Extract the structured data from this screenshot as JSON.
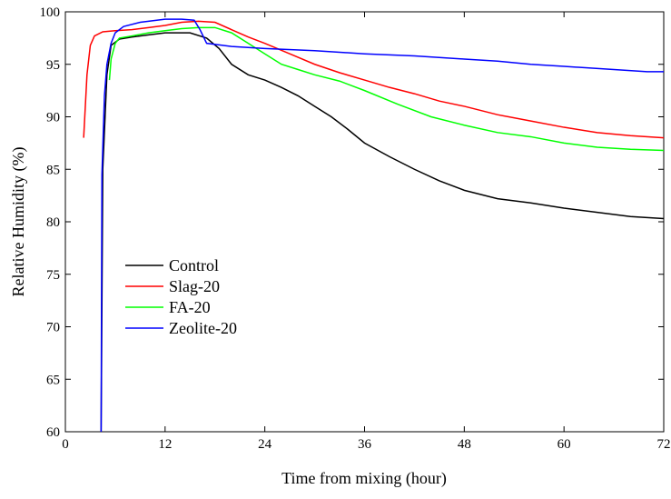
{
  "chart_data": {
    "type": "line",
    "x_label": "Time from mixing (hour)",
    "y_label": "Relative Humidity (%)",
    "xlim": [
      0,
      72
    ],
    "xticks": [
      0,
      12,
      24,
      36,
      48,
      60,
      72
    ],
    "ylim": [
      60,
      100
    ],
    "yticks": [
      60,
      65,
      70,
      75,
      80,
      85,
      90,
      95,
      100
    ],
    "legend": "lower-left",
    "series": [
      {
        "name": "Control",
        "color": "#000000",
        "x": [
          4.3,
          4.5,
          5,
          5.5,
          6.5,
          8,
          10,
          12,
          15,
          17,
          18.5,
          20,
          22,
          24,
          26,
          28,
          30,
          32,
          34,
          36,
          39,
          42,
          45,
          48,
          52,
          56,
          60,
          64,
          68,
          72
        ],
        "values": [
          60,
          85,
          94,
          96.8,
          97.4,
          97.6,
          97.8,
          98,
          98,
          97.5,
          96.5,
          95,
          94,
          93.5,
          92.8,
          92,
          91,
          90,
          88.8,
          87.5,
          86.2,
          85,
          83.9,
          83,
          82.2,
          81.8,
          81.3,
          80.9,
          80.5,
          80.3
        ]
      },
      {
        "name": "Slag-20",
        "color": "#ff0000",
        "x": [
          2.2,
          2.6,
          3,
          3.5,
          4.5,
          6,
          8,
          10,
          12,
          14,
          16,
          18,
          20,
          22,
          24,
          27,
          30,
          33,
          36,
          39,
          42,
          45,
          48,
          52,
          56,
          60,
          64,
          68,
          72
        ],
        "values": [
          88,
          94,
          96.8,
          97.7,
          98.1,
          98.2,
          98.3,
          98.5,
          98.7,
          99,
          99.1,
          99,
          98.3,
          97.6,
          97,
          96,
          95,
          94.2,
          93.5,
          92.8,
          92.2,
          91.5,
          91,
          90.2,
          89.6,
          89,
          88.5,
          88.2,
          88
        ]
      },
      {
        "name": "FA-20",
        "color": "#00ff00",
        "x": [
          5.3,
          5.5,
          6,
          6.5,
          8,
          10,
          12,
          14,
          16,
          18,
          20,
          22,
          24,
          26,
          28,
          30,
          33,
          36,
          40,
          44,
          48,
          52,
          56,
          60,
          64,
          68,
          72
        ],
        "values": [
          93.5,
          95.5,
          97,
          97.5,
          97.7,
          98,
          98.2,
          98.4,
          98.5,
          98.5,
          98,
          97,
          96,
          95,
          94.5,
          94,
          93.4,
          92.5,
          91.2,
          90,
          89.2,
          88.5,
          88.1,
          87.5,
          87.1,
          86.9,
          86.8
        ]
      },
      {
        "name": "Zeolite-20",
        "color": "#0000ff",
        "x": [
          4.3,
          4.4,
          4.7,
          5,
          5.5,
          6,
          7,
          9,
          12,
          14,
          15.5,
          16.2,
          17,
          20,
          24,
          30,
          36,
          42,
          48,
          52,
          56,
          60,
          66,
          70,
          72
        ],
        "values": [
          60,
          84.5,
          92,
          95,
          97,
          98,
          98.6,
          99,
          99.3,
          99.3,
          99.2,
          98.3,
          97,
          96.7,
          96.5,
          96.3,
          96,
          95.8,
          95.5,
          95.3,
          95,
          94.8,
          94.5,
          94.3,
          94.3
        ]
      }
    ]
  }
}
